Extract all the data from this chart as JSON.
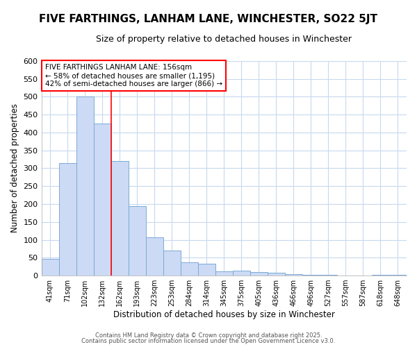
{
  "title": "FIVE FARTHINGS, LANHAM LANE, WINCHESTER, SO22 5JT",
  "subtitle": "Size of property relative to detached houses in Winchester",
  "xlabel": "Distribution of detached houses by size in Winchester",
  "ylabel": "Number of detached properties",
  "categories": [
    "41sqm",
    "71sqm",
    "102sqm",
    "132sqm",
    "162sqm",
    "193sqm",
    "223sqm",
    "253sqm",
    "284sqm",
    "314sqm",
    "345sqm",
    "375sqm",
    "405sqm",
    "436sqm",
    "466sqm",
    "496sqm",
    "527sqm",
    "557sqm",
    "587sqm",
    "618sqm",
    "648sqm"
  ],
  "values": [
    47,
    315,
    500,
    425,
    320,
    195,
    107,
    70,
    37,
    33,
    12,
    14,
    10,
    8,
    5,
    3,
    2,
    1,
    1,
    3,
    3
  ],
  "bar_color": "#ccdaf5",
  "bar_edge_color": "#7aaad4",
  "red_line_x": 4.0,
  "annotation_line1": "FIVE FARTHINGS LANHAM LANE: 156sqm",
  "annotation_line2": "← 58% of detached houses are smaller (1,195)",
  "annotation_line3": "42% of semi-detached houses are larger (866) →",
  "ylim": [
    0,
    600
  ],
  "yticks": [
    0,
    50,
    100,
    150,
    200,
    250,
    300,
    350,
    400,
    450,
    500,
    550,
    600
  ],
  "fig_bg_color": "#ffffff",
  "plot_bg_color": "#ffffff",
  "grid_color": "#c8d8ee",
  "footer_line1": "Contains HM Land Registry data © Crown copyright and database right 2025.",
  "footer_line2": "Contains public sector information licensed under the Open Government Licence v3.0.",
  "title_fontsize": 11,
  "subtitle_fontsize": 9
}
